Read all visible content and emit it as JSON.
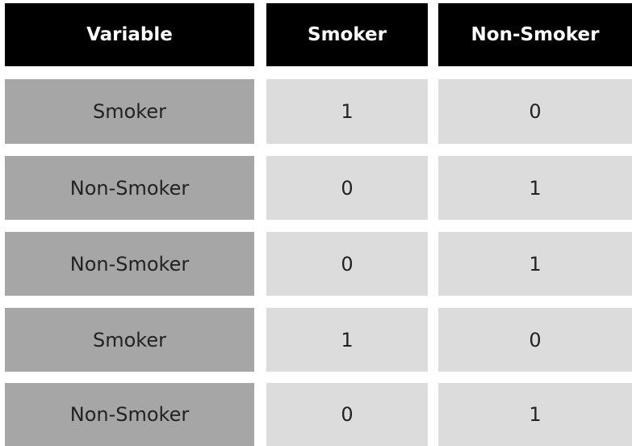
{
  "table": {
    "headers": [
      "Variable",
      "Smoker",
      "Non-Smoker"
    ],
    "rows": [
      [
        "Smoker",
        "1",
        "0"
      ],
      [
        "Non-Smoker",
        "0",
        "1"
      ],
      [
        "Non-Smoker",
        "0",
        "1"
      ],
      [
        "Smoker",
        "1",
        "0"
      ],
      [
        "Non-Smoker",
        "0",
        "1"
      ]
    ]
  },
  "colors": {
    "header_bg": "#000000",
    "header_text": "#ffffff",
    "label_bg": "#a6a6a6",
    "value_bg": "#dcdcdc"
  }
}
